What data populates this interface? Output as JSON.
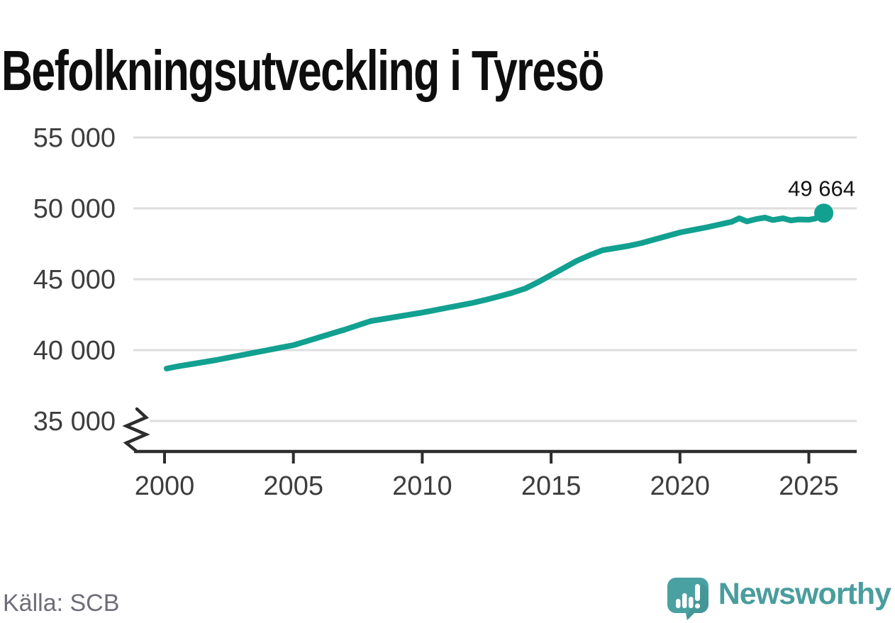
{
  "header": {
    "title": "Befolkningsutveckling i Tyresö"
  },
  "footer": {
    "source": "Källa: SCB",
    "brand": "Newsworthy"
  },
  "colors": {
    "line": "#12a090",
    "grid": "#dedede",
    "axis": "#2d2d2d",
    "tick_text": "#3d3d3d",
    "muted_text": "#6e6e78",
    "brand_teal": "#4a9d9e",
    "brand_teal_dark": "#41908f",
    "background": "#ffffff"
  },
  "chart_data": {
    "type": "line",
    "title": "Befolkningsutveckling i Tyresö",
    "xlabel": "",
    "ylabel": "",
    "grid": true,
    "legend": "none",
    "x_ticks": [
      2000,
      2005,
      2010,
      2015,
      2020,
      2025
    ],
    "x_tick_labels": [
      "2000",
      "2005",
      "2010",
      "2015",
      "2020",
      "2025"
    ],
    "y_ticks": [
      35000,
      40000,
      45000,
      50000,
      55000
    ],
    "y_tick_labels": [
      "35 000",
      "40 000",
      "45 000",
      "50 000",
      "55 000"
    ],
    "ylim_displayed": [
      35000,
      55000
    ],
    "axis_break_at_bottom": true,
    "series": [
      {
        "name": "Befolkning i Tyresö",
        "points": [
          [
            2000.08,
            38700
          ],
          [
            2000.5,
            38850
          ],
          [
            2001,
            39000
          ],
          [
            2001.5,
            39150
          ],
          [
            2002,
            39300
          ],
          [
            2002.5,
            39480
          ],
          [
            2003,
            39650
          ],
          [
            2003.5,
            39830
          ],
          [
            2004,
            40000
          ],
          [
            2004.5,
            40180
          ],
          [
            2005,
            40350
          ],
          [
            2005.5,
            40620
          ],
          [
            2006,
            40900
          ],
          [
            2006.5,
            41180
          ],
          [
            2007,
            41450
          ],
          [
            2007.5,
            41750
          ],
          [
            2008,
            42050
          ],
          [
            2008.5,
            42200
          ],
          [
            2009,
            42350
          ],
          [
            2009.5,
            42500
          ],
          [
            2010,
            42650
          ],
          [
            2010.5,
            42820
          ],
          [
            2011,
            43000
          ],
          [
            2011.5,
            43170
          ],
          [
            2012,
            43350
          ],
          [
            2012.5,
            43570
          ],
          [
            2013,
            43800
          ],
          [
            2013.5,
            44050
          ],
          [
            2014,
            44350
          ],
          [
            2014.5,
            44800
          ],
          [
            2015,
            45300
          ],
          [
            2015.5,
            45800
          ],
          [
            2016,
            46300
          ],
          [
            2016.5,
            46700
          ],
          [
            2017,
            47050
          ],
          [
            2017.5,
            47200
          ],
          [
            2018,
            47350
          ],
          [
            2018.5,
            47550
          ],
          [
            2019,
            47800
          ],
          [
            2019.5,
            48050
          ],
          [
            2020,
            48300
          ],
          [
            2020.5,
            48480
          ],
          [
            2021,
            48650
          ],
          [
            2021.5,
            48850
          ],
          [
            2022,
            49050
          ],
          [
            2022.3,
            49300
          ],
          [
            2022.6,
            49080
          ],
          [
            2023,
            49260
          ],
          [
            2023.3,
            49350
          ],
          [
            2023.6,
            49180
          ],
          [
            2024,
            49300
          ],
          [
            2024.3,
            49150
          ],
          [
            2024.6,
            49220
          ],
          [
            2025,
            49200
          ],
          [
            2025.25,
            49280
          ],
          [
            2025.58,
            49664
          ]
        ]
      }
    ],
    "end_annotation": {
      "text": "49 664",
      "value": 49664
    }
  }
}
